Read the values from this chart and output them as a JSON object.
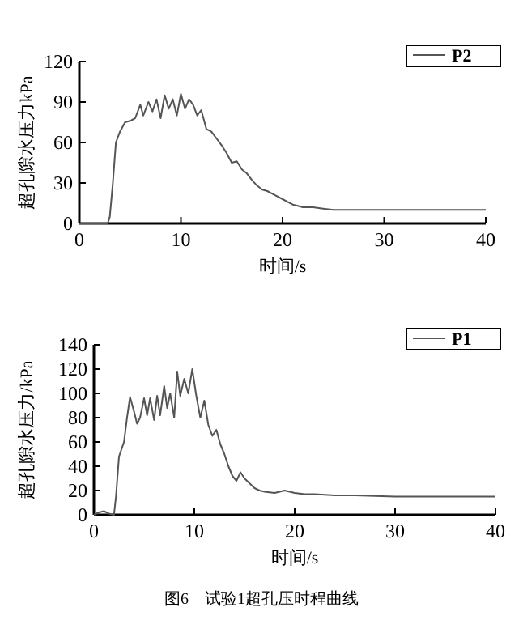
{
  "chart_data": [
    {
      "type": "line",
      "xlabel": "时间/s",
      "ylabel": "超孔隙水压力kPa",
      "xlim": [
        0,
        40
      ],
      "ylim": [
        0,
        120
      ],
      "xticks": [
        0,
        10,
        20,
        30,
        40
      ],
      "yticks": [
        0,
        30,
        60,
        90,
        120
      ],
      "legend": "top right",
      "series": [
        {
          "name": "P2",
          "color": "#555555",
          "x": [
            0,
            2.8,
            3.0,
            3.3,
            3.6,
            4.0,
            4.5,
            5,
            5.5,
            6,
            6.3,
            6.8,
            7.2,
            7.6,
            8,
            8.4,
            8.8,
            9.2,
            9.6,
            10,
            10.4,
            10.8,
            11.2,
            11.6,
            12,
            12.5,
            13,
            13.5,
            14,
            14.5,
            15,
            15.5,
            16,
            16.5,
            17,
            17.5,
            18,
            18.5,
            19,
            19.5,
            20,
            20.5,
            21,
            21.5,
            22,
            23,
            24,
            25,
            26,
            30,
            35,
            40
          ],
          "values": [
            0,
            0,
            5,
            30,
            60,
            68,
            75,
            76,
            78,
            88,
            80,
            90,
            83,
            92,
            78,
            95,
            85,
            92,
            80,
            96,
            85,
            92,
            88,
            80,
            84,
            70,
            68,
            63,
            58,
            52,
            45,
            46,
            40,
            37,
            32,
            28,
            25,
            24,
            22,
            20,
            18,
            16,
            14,
            13,
            12,
            12,
            11,
            10,
            10,
            10,
            10,
            10
          ]
        }
      ]
    },
    {
      "type": "line",
      "xlabel": "时间/s",
      "ylabel": "超孔隙水压力/kPa",
      "xlim": [
        0,
        40
      ],
      "ylim": [
        0,
        140
      ],
      "xticks": [
        0,
        10,
        20,
        30,
        40
      ],
      "yticks": [
        0,
        20,
        40,
        60,
        80,
        100,
        120,
        140
      ],
      "legend": "top right",
      "annotations": [
        "图6　试验1超孔压时程曲线"
      ],
      "series": [
        {
          "name": "P1",
          "color": "#555555",
          "x": [
            0,
            0.5,
            1,
            1.5,
            2,
            2.2,
            2.5,
            3,
            3.3,
            3.6,
            4,
            4.3,
            4.6,
            5,
            5.3,
            5.6,
            6,
            6.3,
            6.6,
            7,
            7.3,
            7.6,
            8,
            8.3,
            8.6,
            9,
            9.4,
            9.8,
            10.2,
            10.6,
            11,
            11.4,
            11.8,
            12.2,
            12.6,
            13,
            13.4,
            13.8,
            14.2,
            14.6,
            15,
            15.5,
            16,
            16.5,
            17,
            18,
            19,
            20,
            21,
            22,
            24,
            26,
            30,
            35,
            40
          ],
          "values": [
            0,
            2,
            3,
            1,
            0,
            15,
            48,
            60,
            80,
            97,
            85,
            75,
            80,
            96,
            82,
            96,
            78,
            98,
            82,
            106,
            88,
            100,
            80,
            118,
            98,
            112,
            100,
            120,
            98,
            80,
            94,
            74,
            65,
            70,
            58,
            50,
            40,
            32,
            28,
            35,
            30,
            26,
            22,
            20,
            19,
            18,
            20,
            18,
            17,
            17,
            16,
            16,
            15,
            15,
            15
          ]
        }
      ]
    }
  ]
}
